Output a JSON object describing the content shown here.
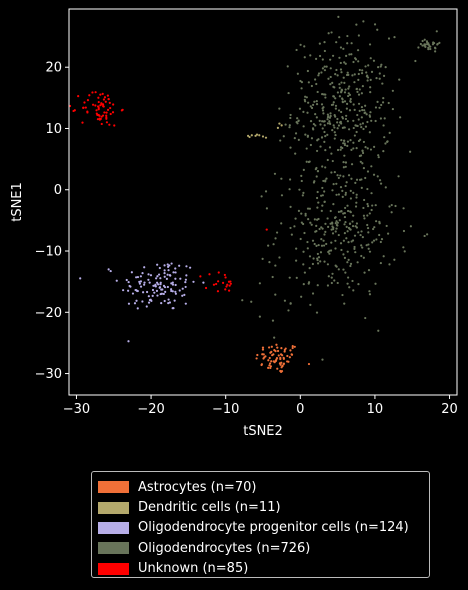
{
  "chart_data": {
    "type": "scatter",
    "title": "",
    "xlabel": "tSNE2",
    "ylabel": "tSNE1",
    "xlim": [
      -31,
      21
    ],
    "ylim": [
      -33.5,
      29.5
    ],
    "xticks": [
      -30,
      -20,
      -10,
      0,
      10,
      20
    ],
    "yticks": [
      -30,
      -20,
      -10,
      0,
      10,
      20
    ],
    "grid": false,
    "legend_position": "below",
    "background": "#000000",
    "series": [
      {
        "name": "Astrocytes (n=70)",
        "color": "#f07038",
        "count": 70,
        "clusters": [
          {
            "n": 70,
            "cx": -3.0,
            "cy": -27.5,
            "sx": 1.5,
            "sy": 1.3
          }
        ]
      },
      {
        "name": "Dendritic cells (n=11)",
        "color": "#b4a96c",
        "count": 11,
        "points": [
          [
            -7.0,
            8.8
          ],
          [
            -6.5,
            8.9
          ],
          [
            -6.0,
            8.8
          ],
          [
            -5.5,
            8.9
          ],
          [
            -5.0,
            8.7
          ],
          [
            -4.6,
            8.5
          ],
          [
            -6.8,
            8.6
          ],
          [
            -5.8,
            9.0
          ],
          [
            -2.5,
            10.5
          ],
          [
            -3.0,
            10.1
          ],
          [
            -2.8,
            10.8
          ]
        ]
      },
      {
        "name": "Oligodendrocyte progenitor cells (n=124)",
        "color": "#b7aee8",
        "count": 124,
        "clusters": [
          {
            "n": 124,
            "cx": -19.0,
            "cy": -15.5,
            "sx": 2.6,
            "sy": 2.2
          }
        ]
      },
      {
        "name": "Oligodendrocytes (n=726)",
        "color": "#68745a",
        "count": 726,
        "clusters": [
          {
            "n": 380,
            "cx": 5.5,
            "cy": 13.0,
            "sx": 3.3,
            "sy": 6.0
          },
          {
            "n": 300,
            "cx": 5.0,
            "cy": -6.5,
            "sx": 4.0,
            "sy": 5.5
          },
          {
            "n": 30,
            "cx": 17.3,
            "cy": 23.8,
            "sx": 0.6,
            "sy": 0.6
          },
          {
            "n": 16,
            "cx": -1.0,
            "cy": -17.5,
            "sx": 3.5,
            "sy": 3.0
          }
        ]
      },
      {
        "name": "Unknown (n=85)",
        "color": "#ff0000",
        "count": 85,
        "clusters": [
          {
            "n": 65,
            "cx": -26.8,
            "cy": 13.3,
            "sx": 1.3,
            "sy": 1.5
          },
          {
            "n": 19,
            "cx": -10.8,
            "cy": -15.5,
            "sx": 1.1,
            "sy": 1.2
          }
        ],
        "points": [
          [
            -4.5,
            -6.5
          ]
        ]
      }
    ]
  },
  "legend": {
    "items": [
      {
        "label": "Astrocytes (n=70)",
        "color": "#f07038"
      },
      {
        "label": "Dendritic cells (n=11)",
        "color": "#b4a96c"
      },
      {
        "label": "Oligodendrocyte progenitor cells (n=124)",
        "color": "#b7aee8"
      },
      {
        "label": "Oligodendrocytes (n=726)",
        "color": "#68745a"
      },
      {
        "label": "Unknown (n=85)",
        "color": "#ff0000"
      }
    ]
  }
}
